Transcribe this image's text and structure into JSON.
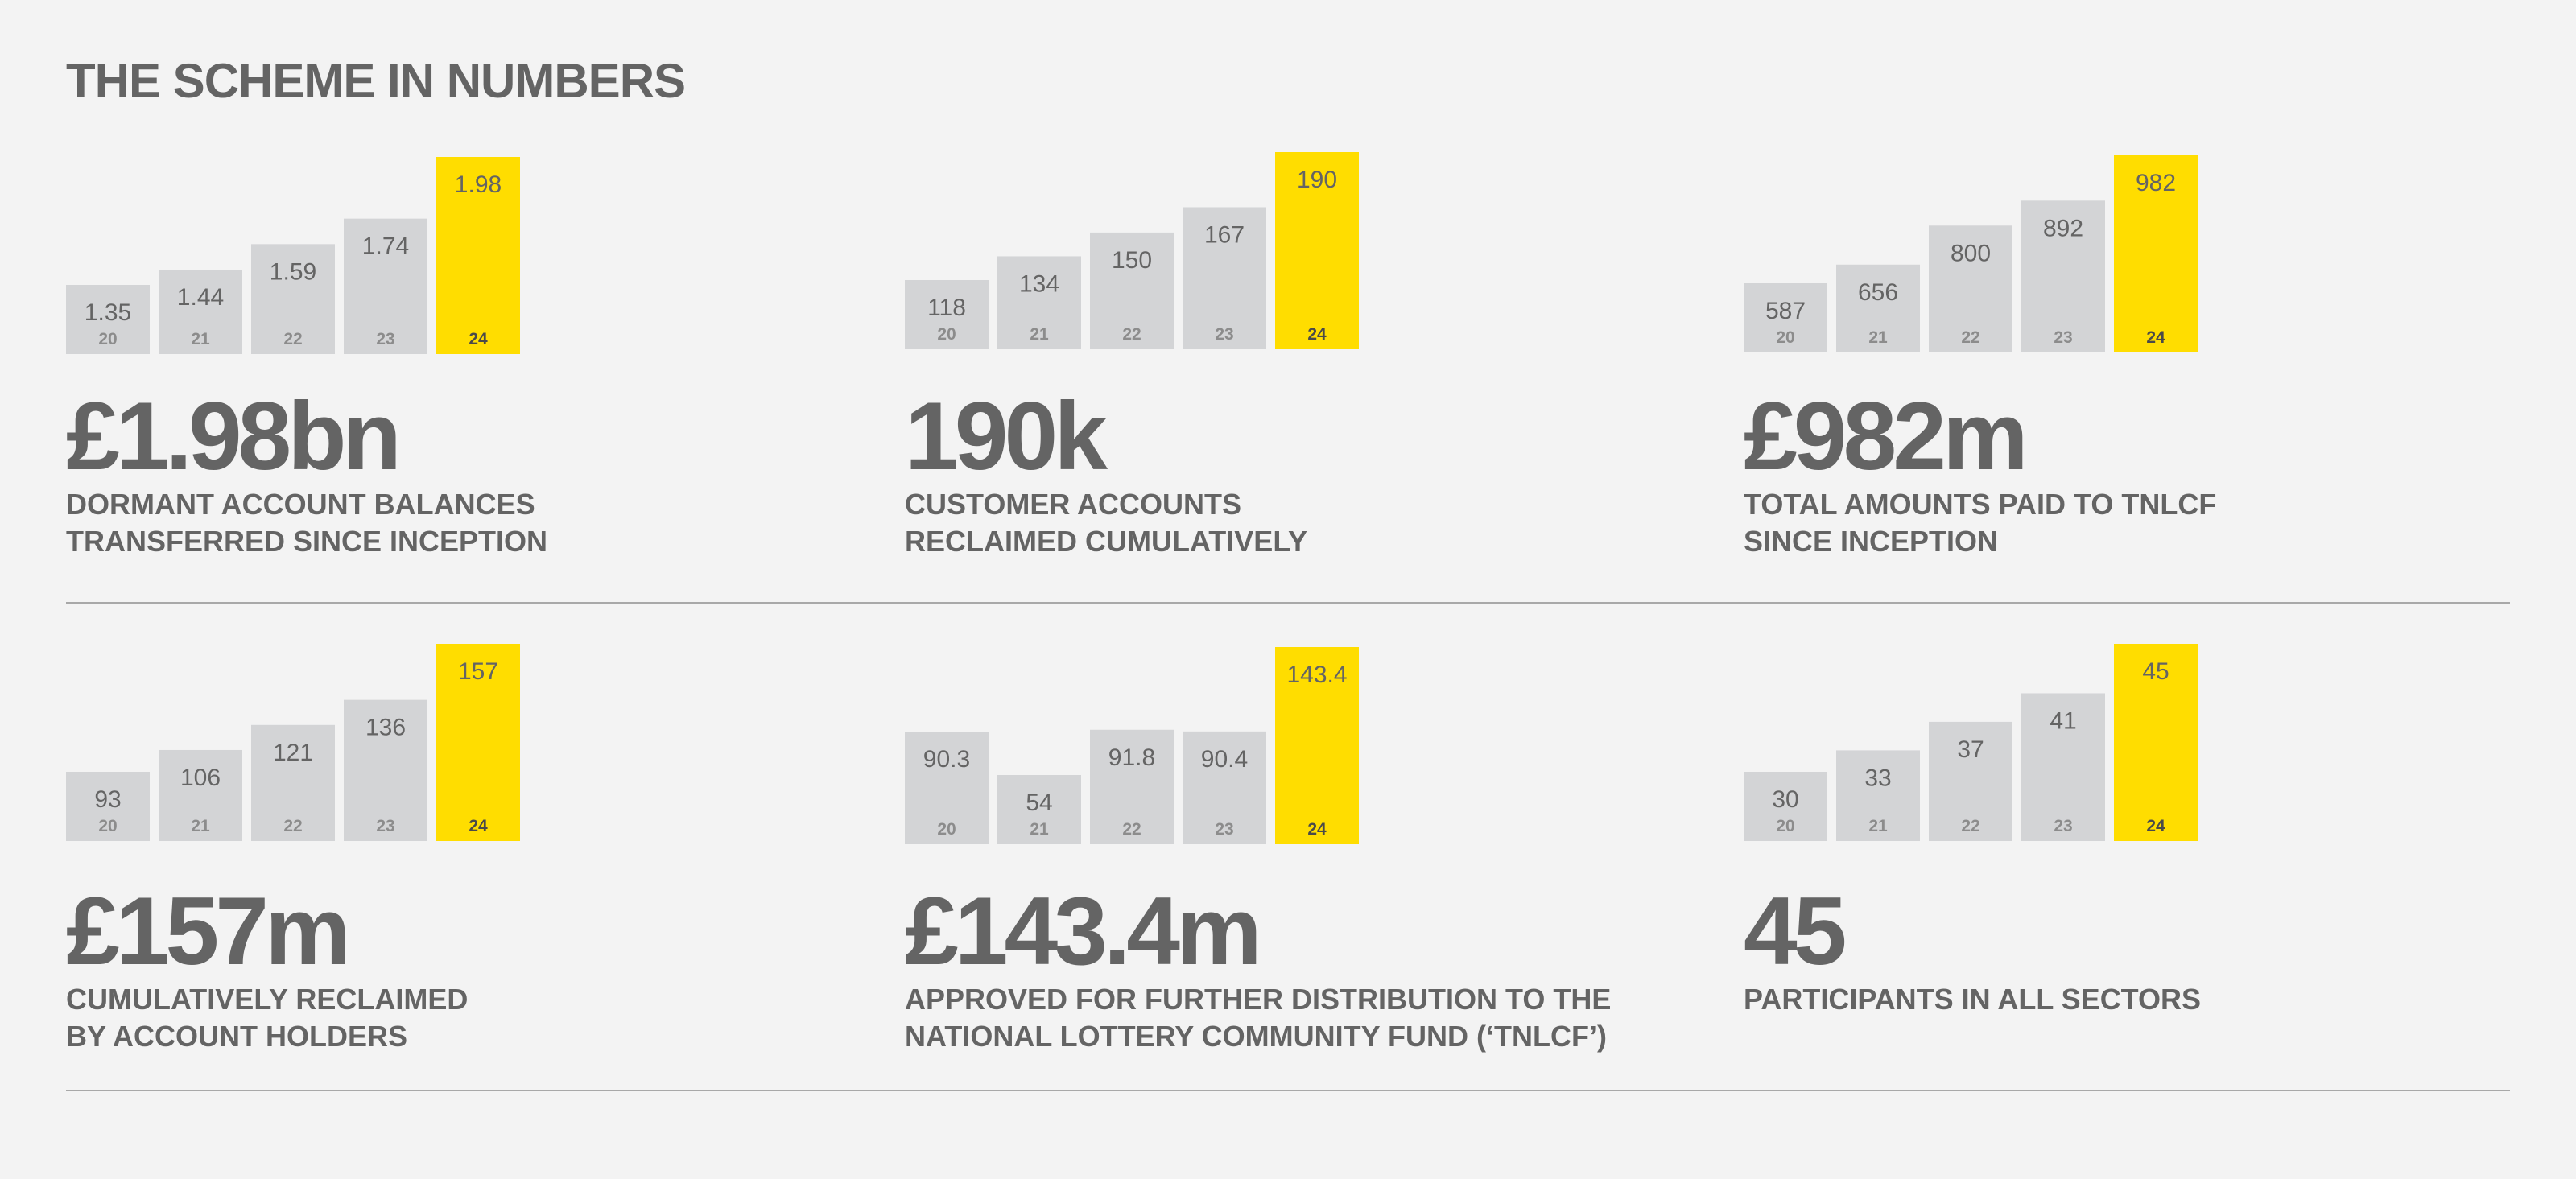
{
  "title": "THE SCHEME IN NUMBERS",
  "colors": {
    "bar": "#d3d4d6",
    "highlight": "#ffdd00",
    "text": "#646464",
    "rule": "#a8a8a8",
    "background": "#f3f3f3"
  },
  "panels": [
    {
      "headline": "£1.98bn",
      "label_lines": [
        "DORMANT ACCOUNT BALANCES",
        "TRANSFERRED SINCE INCEPTION"
      ]
    },
    {
      "headline": "190k",
      "label_lines": [
        "CUSTOMER ACCOUNTS",
        "RECLAIMED CUMULATIVELY"
      ]
    },
    {
      "headline": "£982m",
      "label_lines": [
        "TOTAL AMOUNTS PAID TO TNLCF",
        "SINCE INCEPTION"
      ]
    },
    {
      "headline": "£157m",
      "label_lines": [
        "CUMULATIVELY RECLAIMED",
        "BY ACCOUNT HOLDERS"
      ]
    },
    {
      "headline": "£143.4m",
      "label_lines": [
        "APPROVED FOR FURTHER DISTRIBUTION TO THE",
        "NATIONAL LOTTERY COMMUNITY FUND (‘TNLCF’)"
      ]
    },
    {
      "headline": "45",
      "label_lines": [
        "PARTICIPANTS IN ALL SECTORS"
      ]
    }
  ],
  "chart_data": [
    {
      "type": "bar",
      "categories": [
        "20",
        "21",
        "22",
        "23",
        "24"
      ],
      "values": [
        1.35,
        1.44,
        1.59,
        1.74,
        1.98
      ],
      "value_labels": [
        "1.35",
        "1.44",
        "1.59",
        "1.74",
        "1.98"
      ],
      "highlight_index": 4
    },
    {
      "type": "bar",
      "categories": [
        "20",
        "21",
        "22",
        "23",
        "24"
      ],
      "values": [
        118,
        134,
        150,
        167,
        190
      ],
      "value_labels": [
        "118",
        "134",
        "150",
        "167",
        "190"
      ],
      "highlight_index": 4
    },
    {
      "type": "bar",
      "categories": [
        "20",
        "21",
        "22",
        "23",
        "24"
      ],
      "values": [
        587,
        656,
        800,
        892,
        982
      ],
      "value_labels": [
        "587",
        "656",
        "800",
        "892",
        "982"
      ],
      "highlight_index": 4
    },
    {
      "type": "bar",
      "categories": [
        "20",
        "21",
        "22",
        "23",
        "24"
      ],
      "values": [
        93,
        106,
        121,
        136,
        157
      ],
      "value_labels": [
        "93",
        "106",
        "121",
        "136",
        "157"
      ],
      "highlight_index": 4
    },
    {
      "type": "bar",
      "categories": [
        "20",
        "21",
        "22",
        "23",
        "24"
      ],
      "values": [
        90.3,
        54,
        91.8,
        90.4,
        143.4
      ],
      "value_labels": [
        "90.3",
        "54",
        "91.8",
        "90.4",
        "143.4"
      ],
      "highlight_index": 4
    },
    {
      "type": "bar",
      "categories": [
        "20",
        "21",
        "22",
        "23",
        "24"
      ],
      "values": [
        30,
        33,
        37,
        41,
        45
      ],
      "value_labels": [
        "30",
        "33",
        "37",
        "41",
        "45"
      ],
      "highlight_index": 4
    }
  ]
}
